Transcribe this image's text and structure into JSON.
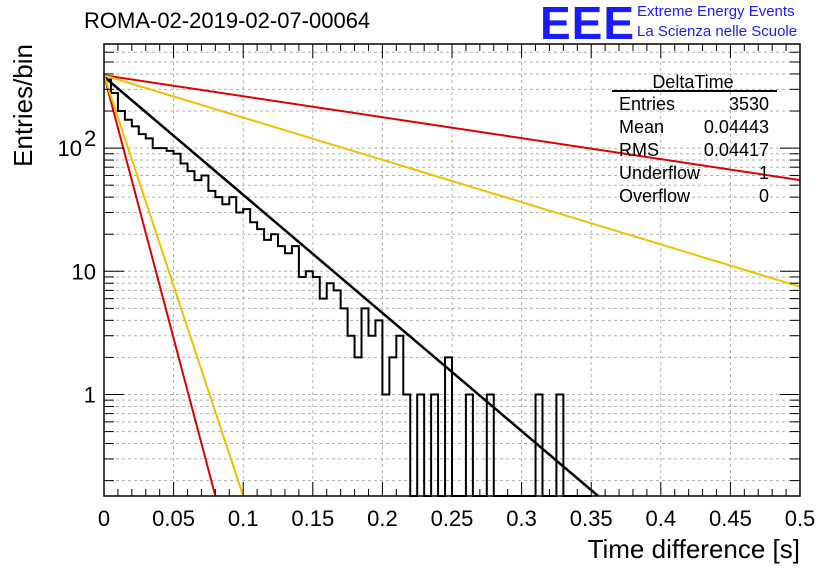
{
  "header": {
    "title": "ROMA-02-2019-02-07-00064",
    "logo_text": "EEE",
    "logo_line1": "Extreme Energy Events",
    "logo_line2": "La Scienza nelle Scuole"
  },
  "stats_box": {
    "title": "DeltaTime",
    "rows": [
      {
        "label": "Entries",
        "value": "3530"
      },
      {
        "label": "Mean",
        "value": "0.04443"
      },
      {
        "label": "RMS",
        "value": "0.04417"
      },
      {
        "label": "Underflow",
        "value": "1"
      },
      {
        "label": "Overflow",
        "value": "0"
      }
    ]
  },
  "chart_data": {
    "type": "histogram",
    "xlabel": "Time difference [s]",
    "ylabel": "Entries/bin",
    "xlim": [
      0,
      0.5
    ],
    "ylim": [
      0.15,
      700
    ],
    "yscale": "log",
    "grid": true,
    "x_ticks": [
      "0",
      "0.05",
      "0.1",
      "0.15",
      "0.2",
      "0.25",
      "0.3",
      "0.35",
      "0.4",
      "0.45",
      "0.5"
    ],
    "y_ticks": [
      {
        "value": 1,
        "label": "1"
      },
      {
        "value": 10,
        "label": "10"
      },
      {
        "value": 100,
        "label": "10",
        "exp": "2"
      }
    ],
    "histogram": {
      "bin_width": 0.005,
      "counts": [
        360,
        280,
        200,
        170,
        150,
        130,
        120,
        100,
        100,
        95,
        90,
        75,
        65,
        55,
        60,
        45,
        40,
        35,
        40,
        30,
        32,
        25,
        22,
        18,
        20,
        16,
        14,
        16,
        9,
        10,
        9,
        6,
        8,
        7,
        5,
        3,
        2,
        5,
        3,
        4,
        1,
        2,
        3,
        1,
        0,
        1,
        0,
        1,
        0,
        2,
        0,
        0,
        1,
        0,
        0,
        1,
        0,
        0,
        0,
        0,
        0,
        0,
        1,
        0,
        0,
        1,
        0,
        0,
        0,
        0
      ]
    },
    "lines": [
      {
        "color": "#000000",
        "x": [
          0,
          0.355
        ],
        "y": [
          380,
          0.15
        ]
      },
      {
        "color": "#dd0000",
        "x": [
          0,
          0.08
        ],
        "y": [
          390,
          0.15
        ]
      },
      {
        "color": "#f0c000",
        "x": [
          0,
          0.1
        ],
        "y": [
          390,
          0.15
        ]
      },
      {
        "color": "#dd0000",
        "x": [
          0,
          0.5
        ],
        "y": [
          390,
          55
        ]
      },
      {
        "color": "#f0c000",
        "x": [
          0,
          0.5
        ],
        "y": [
          390,
          7.5
        ]
      }
    ]
  }
}
